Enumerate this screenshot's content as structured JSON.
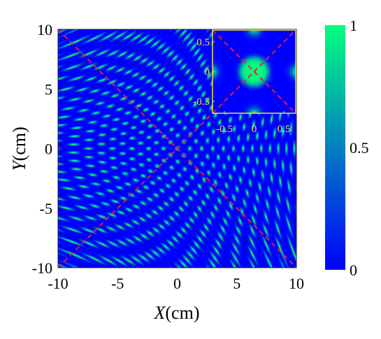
{
  "chart_data": {
    "type": "heatmap",
    "title": "",
    "xlabel": {
      "symbol": "X",
      "unit": "(cm)"
    },
    "ylabel": {
      "symbol": "Y",
      "unit": "(cm)"
    },
    "xlim": [
      -10,
      10
    ],
    "ylim": [
      -10,
      10
    ],
    "xticks": [
      -10,
      -5,
      0,
      5,
      10
    ],
    "yticks": [
      -10,
      -5,
      0,
      5,
      10
    ],
    "xtick_labels": [
      "-10",
      "-5",
      "0",
      "5",
      "10"
    ],
    "ytick_labels": [
      "-10",
      "-5",
      "0",
      "5",
      "10"
    ],
    "field": {
      "description": "normalized intensity interference lattice, saddle-shaped (x^2 - y^2) pattern",
      "value_range": [
        0,
        1
      ],
      "lattice_period_cm": 1.1,
      "saddle_strength": 0.07
    },
    "overlay_lines": [
      {
        "style": "dashed",
        "color": "#e8202a",
        "from": [
          -10,
          10
        ],
        "to": [
          10,
          -10
        ]
      },
      {
        "style": "dashed",
        "color": "#e8202a",
        "from": [
          -10,
          -10
        ],
        "to": [
          10,
          10
        ]
      }
    ],
    "inset": {
      "location": "top-right",
      "xlim": [
        -0.7,
        0.7
      ],
      "ylim": [
        -0.7,
        0.7
      ],
      "xticks": [
        -0.5,
        0,
        0.5
      ],
      "yticks": [
        -0.5,
        0,
        0.5
      ],
      "xtick_labels": [
        "-0.5",
        "0",
        "0.5"
      ],
      "ytick_labels": [
        "-0.5",
        "0",
        "0.5"
      ],
      "tick_color": "#f2e23a",
      "border_color": "#f2e23a"
    },
    "colorbar": {
      "location": "right",
      "range": [
        0,
        1
      ],
      "ticks": [
        0,
        0.5,
        1
      ],
      "tick_labels": [
        "0",
        "0.5",
        "1"
      ],
      "colormap": "winter",
      "colors": [
        "#0000ff",
        "#00ff80"
      ]
    },
    "grid": false
  }
}
